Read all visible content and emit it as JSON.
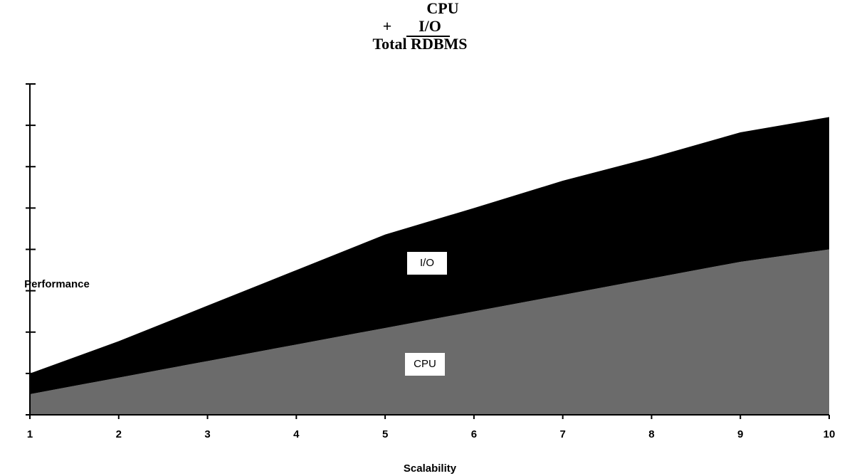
{
  "chart_data": {
    "type": "stacked-area",
    "title_line1": "CPU",
    "title_operator": "+",
    "title_line2": "I/O",
    "title_line3": "Total RDBMS",
    "x_label": "Scalability",
    "y_label": "Performance",
    "x": [
      1,
      2,
      3,
      4,
      5,
      6,
      7,
      8,
      9,
      10
    ],
    "series": [
      {
        "name": "CPU",
        "color": "#6b6b6b",
        "values": [
          0.5,
          0.9,
          1.3,
          1.7,
          2.1,
          2.5,
          2.9,
          3.3,
          3.7,
          4.0
        ]
      },
      {
        "name": "I/O",
        "color": "#000000",
        "values": [
          0.5,
          0.88,
          1.34,
          1.8,
          2.26,
          2.5,
          2.76,
          2.92,
          3.13,
          3.2
        ]
      }
    ],
    "xlim": [
      1,
      10
    ],
    "xticks": [
      1,
      2,
      3,
      4,
      5,
      6,
      7,
      8,
      9,
      10
    ],
    "ylim": [
      0,
      8
    ],
    "yticks": [
      0,
      1,
      2,
      3,
      4,
      5,
      6,
      7,
      8
    ]
  }
}
